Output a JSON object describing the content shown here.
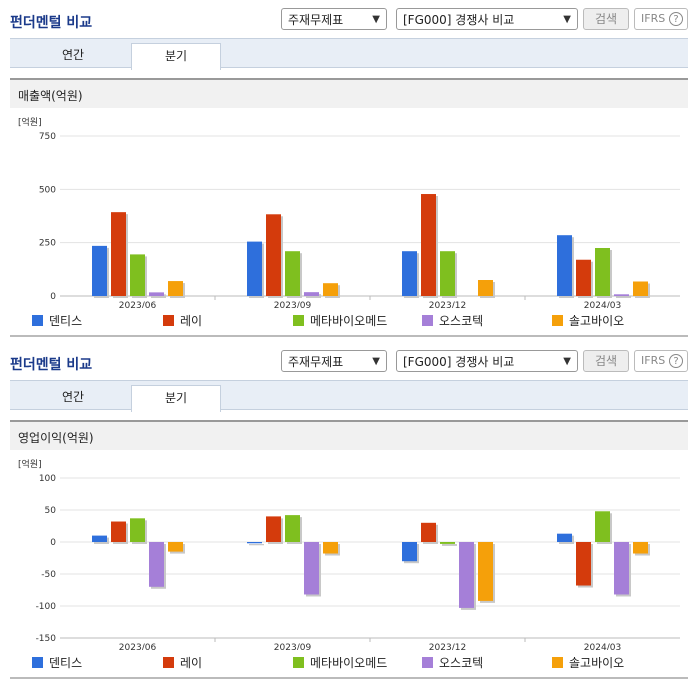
{
  "panels": [
    {
      "title": "펀더멘털 비교",
      "select1": "주재무제표",
      "select2": "[FG000] 경쟁사 비교",
      "search_label": "검색",
      "ifrs_label": "IFRS",
      "help_glyph": "?",
      "tabs": [
        "연간",
        "분기"
      ],
      "active_tab": "분기",
      "section_title": "매출액(억원)"
    },
    {
      "title": "펀더멘털 비교",
      "select1": "주재무제표",
      "select2": "[FG000] 경쟁사 비교",
      "search_label": "검색",
      "ifrs_label": "IFRS",
      "help_glyph": "?",
      "tabs": [
        "연간",
        "분기"
      ],
      "active_tab": "분기",
      "section_title": "영업이익(억원)"
    }
  ],
  "chart_data": [
    {
      "type": "bar",
      "unit_label": "[억원]",
      "categories": [
        "2023/06",
        "2023/09",
        "2023/12",
        "2024/03"
      ],
      "yticks": [
        0,
        250,
        500,
        750
      ],
      "ylim": [
        0,
        750
      ],
      "series": [
        {
          "name": "덴티스",
          "color": "#2e6fdc",
          "values": [
            235,
            255,
            210,
            285
          ]
        },
        {
          "name": "레이",
          "color": "#d43b0c",
          "values": [
            393,
            383,
            478,
            170
          ]
        },
        {
          "name": "메타바이오메드",
          "color": "#7fbf1f",
          "values": [
            195,
            210,
            210,
            225
          ]
        },
        {
          "name": "오스코텍",
          "color": "#a57fd8",
          "values": [
            17,
            18,
            0,
            8
          ]
        },
        {
          "name": "솔고바이오",
          "color": "#f5a00a",
          "values": [
            70,
            60,
            75,
            68
          ]
        }
      ]
    },
    {
      "type": "bar",
      "unit_label": "[억원]",
      "categories": [
        "2023/06",
        "2023/09",
        "2023/12",
        "2024/03"
      ],
      "yticks": [
        -150,
        -100,
        -50,
        0,
        50,
        100
      ],
      "ylim": [
        -150,
        100
      ],
      "series": [
        {
          "name": "덴티스",
          "color": "#2e6fdc",
          "values": [
            10,
            -2,
            -30,
            13
          ]
        },
        {
          "name": "레이",
          "color": "#d43b0c",
          "values": [
            32,
            40,
            30,
            -68
          ]
        },
        {
          "name": "메타바이오메드",
          "color": "#7fbf1f",
          "values": [
            37,
            42,
            -3,
            48
          ]
        },
        {
          "name": "오스코텍",
          "color": "#a57fd8",
          "values": [
            -70,
            -82,
            -103,
            -82
          ]
        },
        {
          "name": "솔고바이오",
          "color": "#f5a00a",
          "values": [
            -15,
            -18,
            -92,
            -18
          ]
        }
      ]
    }
  ]
}
